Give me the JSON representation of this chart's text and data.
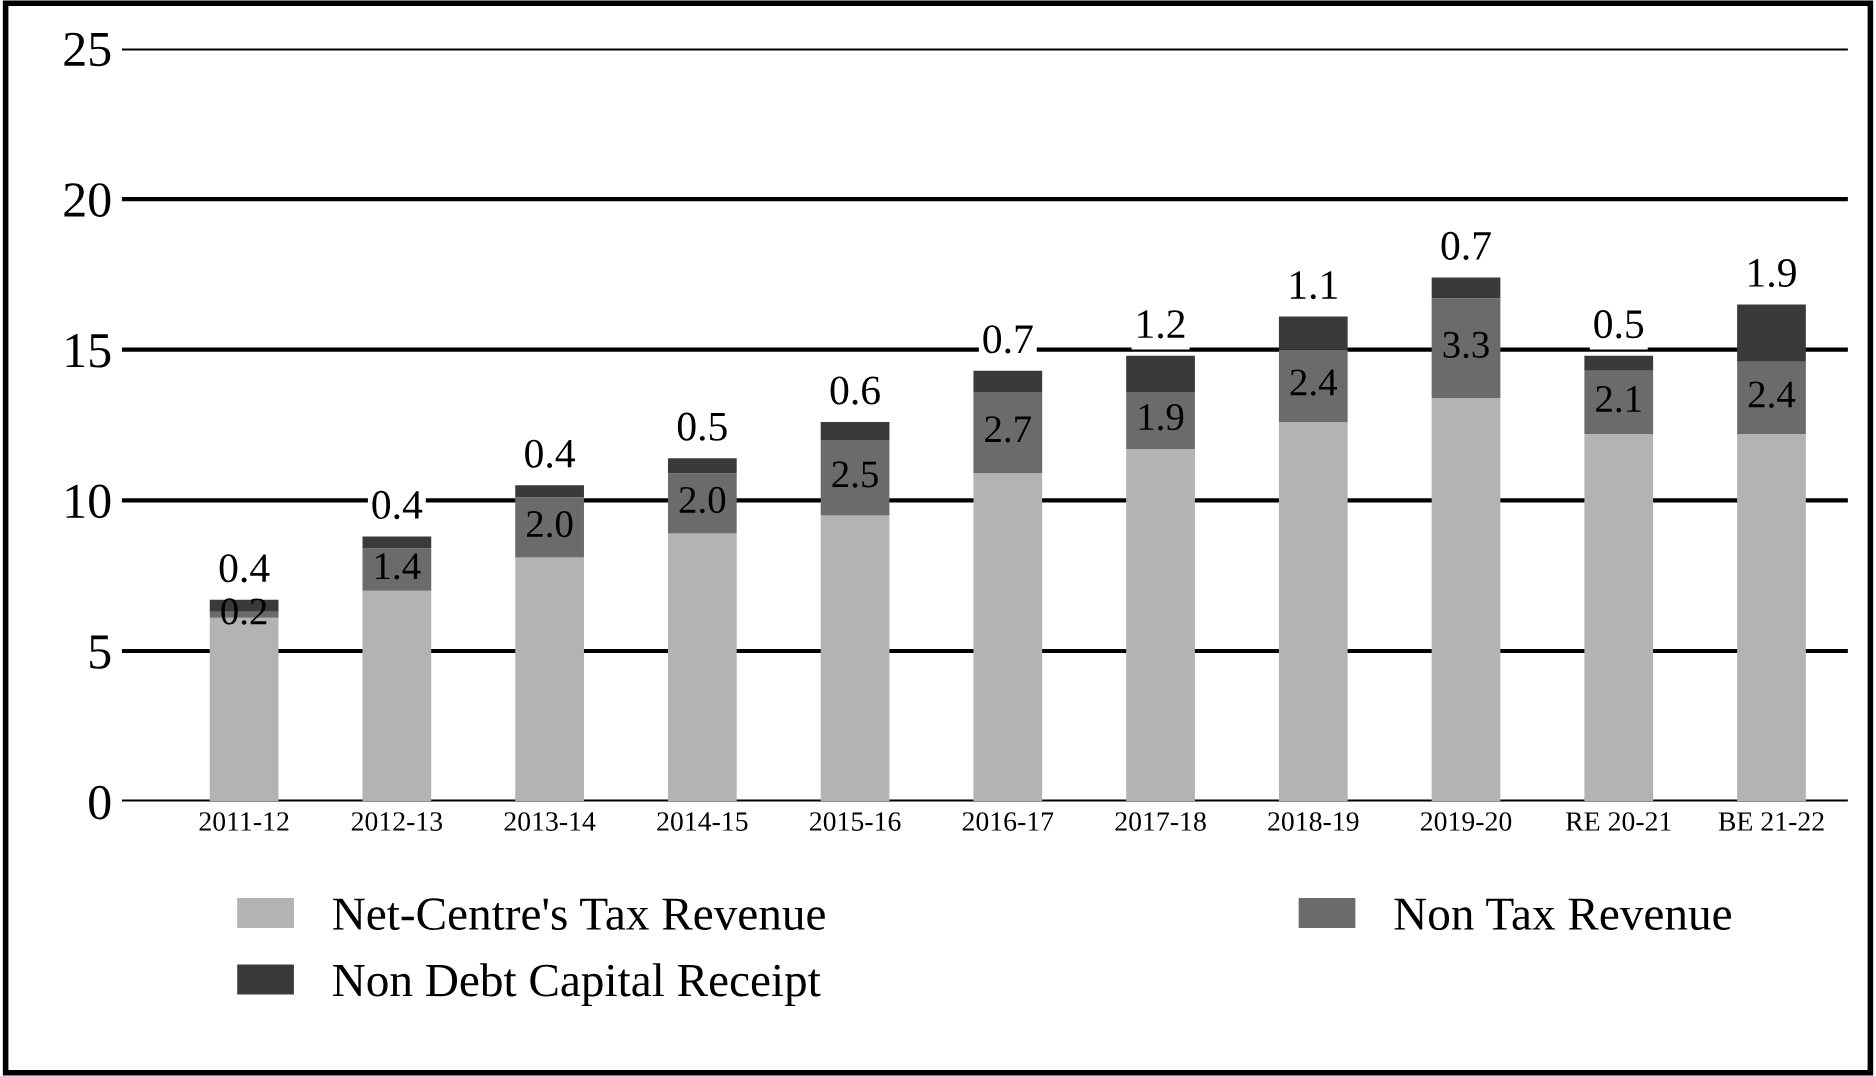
{
  "chart_data": {
    "type": "bar",
    "stacked": true,
    "categories": [
      "2011-12",
      "2012-13",
      "2013-14",
      "2014-15",
      "2015-16",
      "2016-17",
      "2017-18",
      "2018-19",
      "2019-20",
      "RE 20-21",
      "BE 21-22"
    ],
    "series": [
      {
        "name": "Net-Centre's Tax Revenue",
        "color": "#b3b3b3",
        "values": [
          6.1,
          7.0,
          8.1,
          8.9,
          9.5,
          10.9,
          11.7,
          12.6,
          13.4,
          12.2,
          12.2
        ]
      },
      {
        "name": "Non Tax Revenue",
        "color": "#6b6b6b",
        "values": [
          0.2,
          1.4,
          2.0,
          2.0,
          2.5,
          2.7,
          1.9,
          2.4,
          3.3,
          2.1,
          2.4
        ],
        "value_labels": [
          "0.2",
          "1.4",
          "2.0",
          "2.0",
          "2.5",
          "2.7",
          "1.9",
          "2.4",
          "3.3",
          "2.1",
          "2.4"
        ]
      },
      {
        "name": "Non Debt Capital Receipt",
        "color": "#3a3a3a",
        "values": [
          0.4,
          0.4,
          0.4,
          0.5,
          0.6,
          0.7,
          1.2,
          1.1,
          0.7,
          0.5,
          1.9
        ],
        "value_labels": [
          "0.4",
          "0.4",
          "0.4",
          "0.5",
          "0.6",
          "0.7",
          "1.2",
          "1.1",
          "0.7",
          "0.5",
          "1.9"
        ]
      }
    ],
    "ylim": [
      0,
      25
    ],
    "yticks": [
      0,
      5,
      10,
      15,
      20,
      25
    ],
    "grid": "y",
    "legend": "bottom"
  }
}
